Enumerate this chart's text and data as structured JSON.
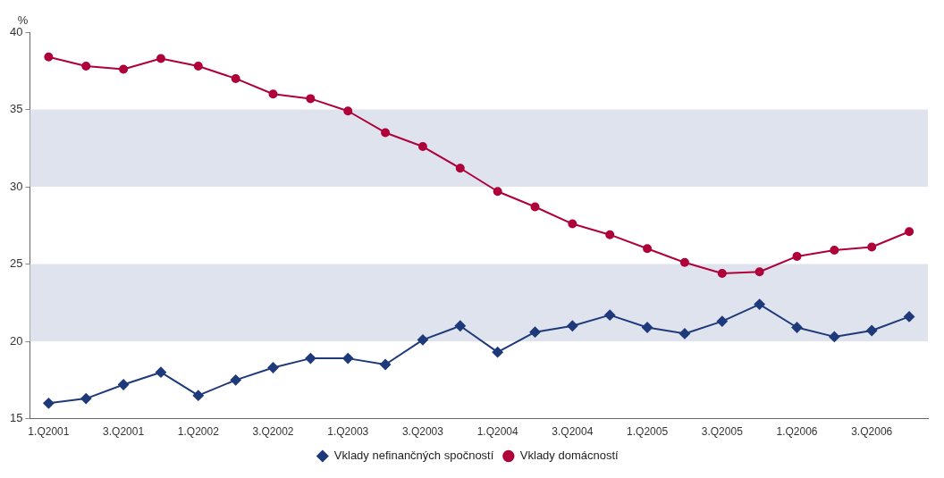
{
  "chart_data": {
    "type": "line",
    "ylabel": "%",
    "categories": [
      "1.Q2001",
      null,
      "3.Q2001",
      null,
      "1.Q2002",
      null,
      "3.Q2002",
      null,
      "1.Q2003",
      null,
      "3.Q2003",
      null,
      "1.Q2004",
      null,
      "3.Q2004",
      null,
      "1.Q2005",
      null,
      "3.Q2005",
      null,
      "1.Q2006",
      null,
      "3.Q2006",
      null
    ],
    "series": [
      {
        "name": "Vklady nefinančných spočností",
        "color": "#1f3a7a",
        "marker": "diamond",
        "values": [
          16.0,
          16.3,
          17.2,
          18.0,
          16.5,
          17.5,
          18.3,
          18.9,
          18.9,
          18.5,
          20.1,
          21.0,
          19.3,
          20.6,
          21.0,
          21.7,
          20.9,
          20.5,
          21.3,
          22.4,
          20.9,
          20.3,
          20.7,
          21.6
        ]
      },
      {
        "name": "Vklady domácností",
        "color": "#b0003a",
        "marker": "circle",
        "values": [
          38.4,
          37.8,
          37.6,
          38.3,
          37.8,
          37.0,
          36.0,
          35.7,
          34.9,
          33.5,
          32.6,
          31.2,
          29.7,
          28.7,
          27.6,
          26.9,
          26.0,
          25.1,
          24.4,
          24.5,
          25.5,
          25.9,
          26.1,
          27.1
        ]
      }
    ],
    "ylim": [
      15,
      40
    ],
    "yticks": [
      15,
      20,
      25,
      30,
      35,
      40
    ],
    "grid": false,
    "legend": "bottom",
    "line_style": "solid",
    "bands": [
      {
        "axis": "y",
        "from": 20,
        "to": 25,
        "color": "#dfe3ee"
      },
      {
        "axis": "y",
        "from": 30,
        "to": 35,
        "color": "#dfe3ee"
      }
    ]
  }
}
